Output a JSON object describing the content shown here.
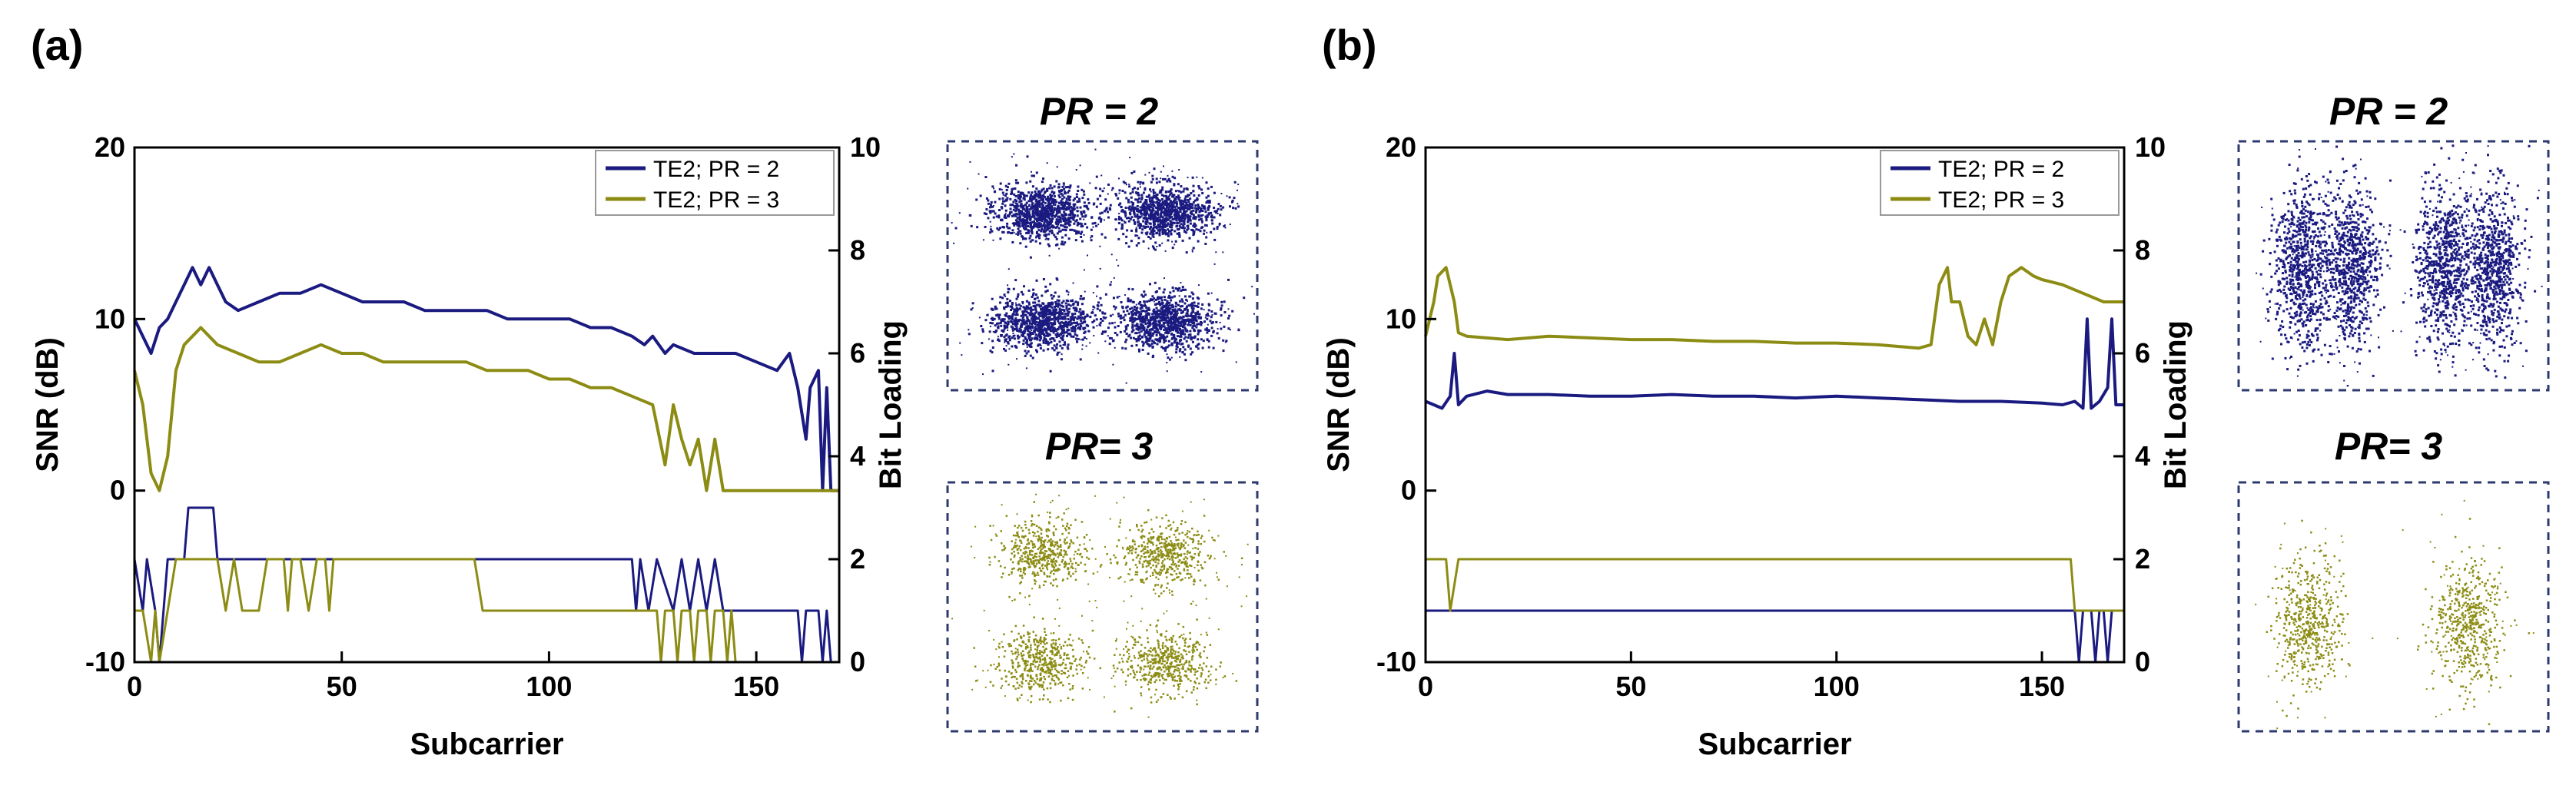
{
  "colors": {
    "snr_pr2": "#1a1a80",
    "snr_pr3": "#8c8c14",
    "axis": "#000000",
    "box": "#2e3a6e"
  },
  "panels": [
    {
      "label": "(a)",
      "legend": [
        "TE2; PR = 2",
        "TE2; PR = 3"
      ],
      "constellations": [
        {
          "title": "PR = 2",
          "color": "#1a1a80",
          "kind": "dense4"
        },
        {
          "title": "PR= 3",
          "color": "#8c8c14",
          "kind": "sparse4"
        }
      ]
    },
    {
      "label": "(b)",
      "legend": [
        "TE2; PR = 2",
        "TE2; PR = 3"
      ],
      "constellations": [
        {
          "title": "PR = 2",
          "color": "#1a1a80",
          "kind": "dense2split"
        },
        {
          "title": "PR= 3",
          "color": "#8c8c14",
          "kind": "sparse2"
        }
      ]
    }
  ],
  "chart_data": [
    {
      "type": "line",
      "panel": "(a)",
      "xlabel": "Subcarrier",
      "ylabel": "SNR (dB)",
      "y2label": "Bit Loading",
      "xlim": [
        0,
        170
      ],
      "ylim": [
        -10,
        20
      ],
      "y2lim": [
        0,
        10
      ],
      "xticks": [
        0,
        50,
        100,
        150
      ],
      "yticks": [
        -10,
        0,
        10,
        20
      ],
      "y2ticks": [
        0,
        2,
        4,
        6,
        8,
        10
      ],
      "series": [
        {
          "name": "TE2; PR = 2",
          "axis": "left",
          "color": "#1a1a80",
          "points": [
            [
              0,
              10
            ],
            [
              2,
              9
            ],
            [
              4,
              8
            ],
            [
              6,
              9.5
            ],
            [
              8,
              10
            ],
            [
              10,
              11
            ],
            [
              12,
              12
            ],
            [
              14,
              13
            ],
            [
              16,
              12
            ],
            [
              18,
              13
            ],
            [
              20,
              12
            ],
            [
              22,
              11
            ],
            [
              25,
              10.5
            ],
            [
              30,
              11
            ],
            [
              35,
              11.5
            ],
            [
              40,
              11.5
            ],
            [
              45,
              12
            ],
            [
              50,
              11.5
            ],
            [
              55,
              11
            ],
            [
              60,
              11
            ],
            [
              65,
              11
            ],
            [
              70,
              10.5
            ],
            [
              75,
              10.5
            ],
            [
              80,
              10.5
            ],
            [
              85,
              10.5
            ],
            [
              90,
              10
            ],
            [
              95,
              10
            ],
            [
              100,
              10
            ],
            [
              105,
              10
            ],
            [
              110,
              9.5
            ],
            [
              115,
              9.5
            ],
            [
              120,
              9
            ],
            [
              123,
              8.5
            ],
            [
              125,
              9
            ],
            [
              128,
              8
            ],
            [
              130,
              8.5
            ],
            [
              135,
              8
            ],
            [
              140,
              8
            ],
            [
              145,
              8
            ],
            [
              150,
              7.5
            ],
            [
              155,
              7
            ],
            [
              158,
              8
            ],
            [
              160,
              6
            ],
            [
              162,
              3
            ],
            [
              163,
              6
            ],
            [
              165,
              7
            ],
            [
              166,
              0
            ],
            [
              167,
              6
            ],
            [
              168,
              0
            ],
            [
              170,
              0
            ]
          ]
        },
        {
          "name": "TE2; PR = 3",
          "axis": "left",
          "color": "#8c8c14",
          "points": [
            [
              0,
              7
            ],
            [
              2,
              5
            ],
            [
              4,
              1
            ],
            [
              6,
              0
            ],
            [
              8,
              2
            ],
            [
              10,
              7
            ],
            [
              12,
              8.5
            ],
            [
              14,
              9
            ],
            [
              16,
              9.5
            ],
            [
              18,
              9
            ],
            [
              20,
              8.5
            ],
            [
              25,
              8
            ],
            [
              30,
              7.5
            ],
            [
              35,
              7.5
            ],
            [
              40,
              8
            ],
            [
              45,
              8.5
            ],
            [
              50,
              8
            ],
            [
              55,
              8
            ],
            [
              60,
              7.5
            ],
            [
              65,
              7.5
            ],
            [
              70,
              7.5
            ],
            [
              75,
              7.5
            ],
            [
              80,
              7.5
            ],
            [
              85,
              7
            ],
            [
              90,
              7
            ],
            [
              95,
              7
            ],
            [
              100,
              6.5
            ],
            [
              105,
              6.5
            ],
            [
              110,
              6
            ],
            [
              115,
              6
            ],
            [
              120,
              5.5
            ],
            [
              125,
              5
            ],
            [
              128,
              1.5
            ],
            [
              130,
              5
            ],
            [
              132,
              3
            ],
            [
              134,
              1.5
            ],
            [
              136,
              3
            ],
            [
              138,
              0
            ],
            [
              140,
              3
            ],
            [
              142,
              0
            ],
            [
              145,
              0
            ],
            [
              150,
              0
            ],
            [
              160,
              0
            ],
            [
              170,
              0
            ]
          ]
        },
        {
          "name": "TE2; PR = 2 (bit loading)",
          "axis": "right",
          "color": "#1a1a80",
          "points": [
            [
              0,
              2
            ],
            [
              2,
              1
            ],
            [
              3,
              2
            ],
            [
              5,
              1
            ],
            [
              6,
              0
            ],
            [
              8,
              2
            ],
            [
              10,
              2
            ],
            [
              12,
              2
            ],
            [
              13,
              3
            ],
            [
              19,
              3
            ],
            [
              20,
              2
            ],
            [
              120,
              2
            ],
            [
              121,
              1
            ],
            [
              122,
              2
            ],
            [
              124,
              1
            ],
            [
              126,
              2
            ],
            [
              130,
              1
            ],
            [
              132,
              2
            ],
            [
              134,
              1
            ],
            [
              136,
              2
            ],
            [
              138,
              1
            ],
            [
              140,
              2
            ],
            [
              142,
              1
            ],
            [
              145,
              1
            ],
            [
              160,
              1
            ],
            [
              161,
              0
            ],
            [
              162,
              1
            ],
            [
              165,
              1
            ],
            [
              166,
              0
            ],
            [
              167,
              1
            ],
            [
              168,
              0
            ],
            [
              170,
              0
            ]
          ]
        },
        {
          "name": "TE2; PR = 3 (bit loading)",
          "axis": "right",
          "color": "#8c8c14",
          "points": [
            [
              0,
              1
            ],
            [
              2,
              1
            ],
            [
              4,
              0
            ],
            [
              5,
              1
            ],
            [
              6,
              0
            ],
            [
              8,
              1
            ],
            [
              10,
              2
            ],
            [
              20,
              2
            ],
            [
              22,
              1
            ],
            [
              24,
              2
            ],
            [
              26,
              1
            ],
            [
              30,
              1
            ],
            [
              32,
              2
            ],
            [
              36,
              2
            ],
            [
              37,
              1
            ],
            [
              38,
              2
            ],
            [
              40,
              2
            ],
            [
              42,
              1
            ],
            [
              44,
              2
            ],
            [
              46,
              2
            ],
            [
              47,
              1
            ],
            [
              48,
              2
            ],
            [
              82,
              2
            ],
            [
              83,
              1.5
            ],
            [
              84,
              1
            ],
            [
              90,
              1
            ],
            [
              126,
              1
            ],
            [
              127,
              0
            ],
            [
              128,
              1
            ],
            [
              130,
              1
            ],
            [
              131,
              0
            ],
            [
              132,
              1
            ],
            [
              134,
              1
            ],
            [
              135,
              0
            ],
            [
              136,
              1
            ],
            [
              138,
              1
            ],
            [
              139,
              0
            ],
            [
              140,
              1
            ],
            [
              142,
              1
            ],
            [
              143,
              0
            ],
            [
              144,
              1
            ],
            [
              145,
              0
            ],
            [
              150,
              0
            ],
            [
              170,
              0
            ]
          ]
        }
      ]
    },
    {
      "type": "line",
      "panel": "(b)",
      "xlabel": "Subcarrier",
      "ylabel": "SNR (dB)",
      "y2label": "Bit Loading",
      "xlim": [
        0,
        170
      ],
      "ylim": [
        -10,
        20
      ],
      "y2lim": [
        0,
        10
      ],
      "xticks": [
        0,
        50,
        100,
        150
      ],
      "yticks": [
        -10,
        0,
        10,
        20
      ],
      "y2ticks": [
        0,
        2,
        4,
        6,
        8,
        10
      ],
      "series": [
        {
          "name": "TE2; PR = 2",
          "axis": "left",
          "color": "#1a1a80",
          "points": [
            [
              0,
              5.2
            ],
            [
              2,
              5
            ],
            [
              4,
              4.8
            ],
            [
              6,
              5.5
            ],
            [
              7,
              8
            ],
            [
              8,
              5
            ],
            [
              10,
              5.5
            ],
            [
              15,
              5.8
            ],
            [
              20,
              5.6
            ],
            [
              30,
              5.6
            ],
            [
              40,
              5.5
            ],
            [
              50,
              5.5
            ],
            [
              60,
              5.6
            ],
            [
              70,
              5.5
            ],
            [
              80,
              5.5
            ],
            [
              90,
              5.4
            ],
            [
              100,
              5.5
            ],
            [
              110,
              5.4
            ],
            [
              120,
              5.3
            ],
            [
              130,
              5.2
            ],
            [
              140,
              5.2
            ],
            [
              150,
              5.1
            ],
            [
              155,
              5
            ],
            [
              158,
              5.2
            ],
            [
              160,
              4.8
            ],
            [
              161,
              10
            ],
            [
              162,
              4.8
            ],
            [
              164,
              5.2
            ],
            [
              166,
              6
            ],
            [
              167,
              10
            ],
            [
              168,
              5
            ],
            [
              170,
              5
            ]
          ]
        },
        {
          "name": "TE2; PR = 3",
          "axis": "left",
          "color": "#8c8c14",
          "points": [
            [
              0,
              9
            ],
            [
              2,
              11
            ],
            [
              3,
              12.5
            ],
            [
              5,
              13
            ],
            [
              7,
              11
            ],
            [
              8,
              9.2
            ],
            [
              10,
              9
            ],
            [
              20,
              8.8
            ],
            [
              30,
              9
            ],
            [
              40,
              8.9
            ],
            [
              50,
              8.8
            ],
            [
              60,
              8.8
            ],
            [
              70,
              8.7
            ],
            [
              80,
              8.7
            ],
            [
              90,
              8.6
            ],
            [
              100,
              8.6
            ],
            [
              110,
              8.5
            ],
            [
              120,
              8.3
            ],
            [
              123,
              8.5
            ],
            [
              125,
              12
            ],
            [
              127,
              13
            ],
            [
              128,
              11
            ],
            [
              130,
              11
            ],
            [
              132,
              9
            ],
            [
              134,
              8.5
            ],
            [
              136,
              10
            ],
            [
              138,
              8.5
            ],
            [
              140,
              11
            ],
            [
              142,
              12.5
            ],
            [
              145,
              13
            ],
            [
              148,
              12.5
            ],
            [
              150,
              12.3
            ],
            [
              155,
              12
            ],
            [
              160,
              11.5
            ],
            [
              165,
              11
            ],
            [
              168,
              11
            ],
            [
              170,
              11
            ]
          ]
        },
        {
          "name": "TE2; PR = 2 (bit loading)",
          "axis": "right",
          "color": "#1a1a80",
          "points": [
            [
              0,
              1
            ],
            [
              158,
              1
            ],
            [
              159,
              0
            ],
            [
              160,
              1
            ],
            [
              162,
              1
            ],
            [
              163,
              0
            ],
            [
              164,
              1
            ],
            [
              165,
              1
            ],
            [
              166,
              0
            ],
            [
              167,
              1
            ],
            [
              170,
              1
            ]
          ]
        },
        {
          "name": "TE2; PR = 3 (bit loading)",
          "axis": "right",
          "color": "#8c8c14",
          "points": [
            [
              0,
              2
            ],
            [
              5,
              2
            ],
            [
              6,
              1
            ],
            [
              8,
              2
            ],
            [
              155,
              2
            ],
            [
              157,
              2
            ],
            [
              158,
              1
            ],
            [
              170,
              1
            ]
          ]
        }
      ]
    }
  ]
}
